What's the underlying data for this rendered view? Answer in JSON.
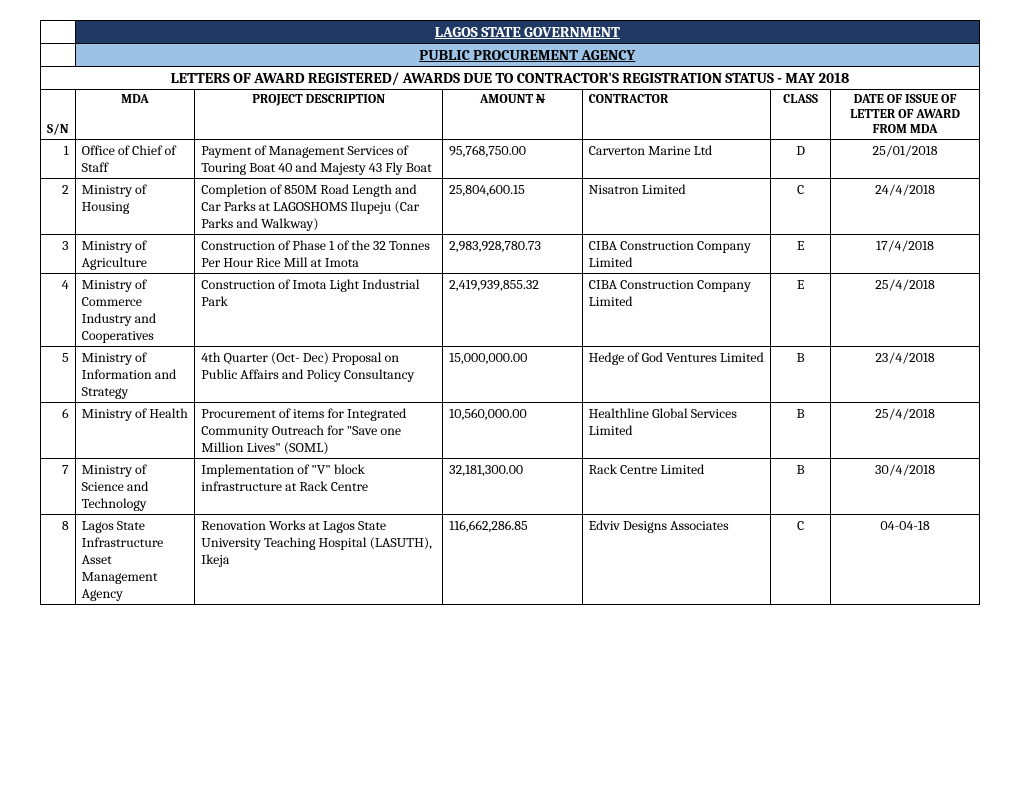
{
  "titles": {
    "line1": "LAGOS STATE GOVERNMENT",
    "line2": "PUBLIC PROCUREMENT AGENCY",
    "line3": "LETTERS OF AWARD REGISTERED/ AWARDS DUE TO CONTRACTOR'S REGISTRATION STATUS - MAY  2018"
  },
  "headers": {
    "sn": "S/N",
    "mda": "MDA",
    "project": "PROJECT DESCRIPTION",
    "amount_pre": "AMOUNT  ",
    "amount_strike": "N",
    "contractor": "CONTRACTOR",
    "class": "CLASS",
    "date": "DATE OF ISSUE OF LETTER OF AWARD FROM MDA"
  },
  "rows": [
    {
      "sn": "1",
      "mda": "Office of Chief of Staff",
      "project": "Payment of Management Services of Touring Boat 40 and Majesty 43 Fly Boat",
      "amount": "95,768,750.00",
      "contractor": "Carverton Marine Ltd",
      "class": "D",
      "date": "25/01/2018"
    },
    {
      "sn": "2",
      "mda": "Ministry of Housing",
      "project": "Completion of 850M Road Length and Car Parks at LAGOSHOMS Ilupeju (Car Parks and Walkway)",
      "amount": "25,804,600.15",
      "contractor": "Nisatron  Limited",
      "class": "C",
      "date": "24/4/2018"
    },
    {
      "sn": "3",
      "mda": "Ministry of Agriculture",
      "project": "Construction of Phase 1 of the 32 Tonnes Per Hour Rice Mill at Imota",
      "amount": "2,983,928,780.73",
      "contractor": "CIBA Construction Company Limited",
      "class": "E",
      "date": "17/4/2018"
    },
    {
      "sn": "4",
      "mda": "Ministry of Commerce Industry and Cooperatives",
      "project": "Construction of Imota Light Industrial Park",
      "amount": "2,419,939,855.32",
      "contractor": "CIBA Construction Company Limited",
      "class": "E",
      "date": "25/4/2018"
    },
    {
      "sn": "5",
      "mda": "Ministry of Information and Strategy",
      "project": "4th Quarter (Oct- Dec) Proposal on Public Affairs and Policy Consultancy",
      "amount": "15,000,000.00",
      "contractor": "Hedge of God Ventures Limited",
      "class": "B",
      "date": "23/4/2018"
    },
    {
      "sn": "6",
      "mda": "Ministry of Health",
      "project": "Procurement of items for Integrated Community Outreach for \"Save one Million Lives\" (SOML)",
      "amount": "10,560,000.00",
      "contractor": "Healthline Global Services Limited",
      "class": "B",
      "date": "25/4/2018"
    },
    {
      "sn": "7",
      "mda": "Ministry of Science and Technology",
      "project": "Implementation of  \"V\" block infrastructure at Rack Centre",
      "amount": "32,181,300.00",
      "contractor": "Rack  Centre Limited",
      "class": "B",
      "date": "30/4/2018"
    },
    {
      "sn": "8",
      "mda": "Lagos State Infrastructure Asset Management Agency",
      "project": "Renovation Works at Lagos State University Teaching Hospital (LASUTH), Ikeja",
      "amount": "116,662,286.85",
      "contractor": "Edviv Designs Associates",
      "class": "C",
      "date": "04-04-18"
    }
  ],
  "style": {
    "navy_bg": "#1f3864",
    "lightblue_bg": "#9cc2e5",
    "border_color": "#000000",
    "font_base_size": 14,
    "header_font_size": 13,
    "title_font_size": 15
  }
}
